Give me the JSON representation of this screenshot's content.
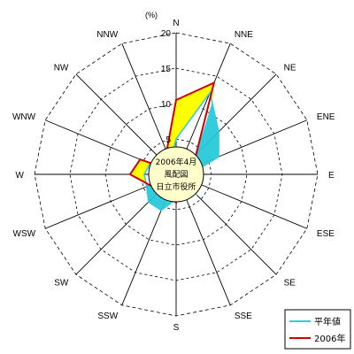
{
  "chart_data": {
    "type": "radar",
    "unit": "(%)",
    "directions": [
      "N",
      "NNE",
      "NE",
      "ENE",
      "E",
      "ESE",
      "SE",
      "SSE",
      "S",
      "SSW",
      "SW",
      "WSW",
      "W",
      "WNW",
      "NW",
      "NNW"
    ],
    "rlim": [
      0,
      20
    ],
    "ticks": [
      0,
      5,
      10,
      15,
      20
    ],
    "center_lines": [
      "2006年4月",
      "風配図",
      "日立市役所"
    ],
    "series": [
      {
        "name": "平年値",
        "color": "#33CCDD",
        "values": [
          5.0,
          12.5,
          8.5,
          6.5,
          2.0,
          2.0,
          4.0,
          2.5,
          3.5,
          5.5,
          5.5,
          4.5,
          4.5,
          4.0,
          1.5,
          2.0
        ]
      },
      {
        "name": "2006年",
        "color": "#CC0000",
        "values": [
          10.5,
          14.0,
          4.0,
          2.0,
          2.0,
          2.0,
          2.5,
          1.5,
          4.0,
          3.0,
          3.0,
          4.0,
          6.5,
          5.5,
          0.8,
          3.5
        ]
      }
    ],
    "grid": true,
    "legend_position": "bottom-right"
  }
}
